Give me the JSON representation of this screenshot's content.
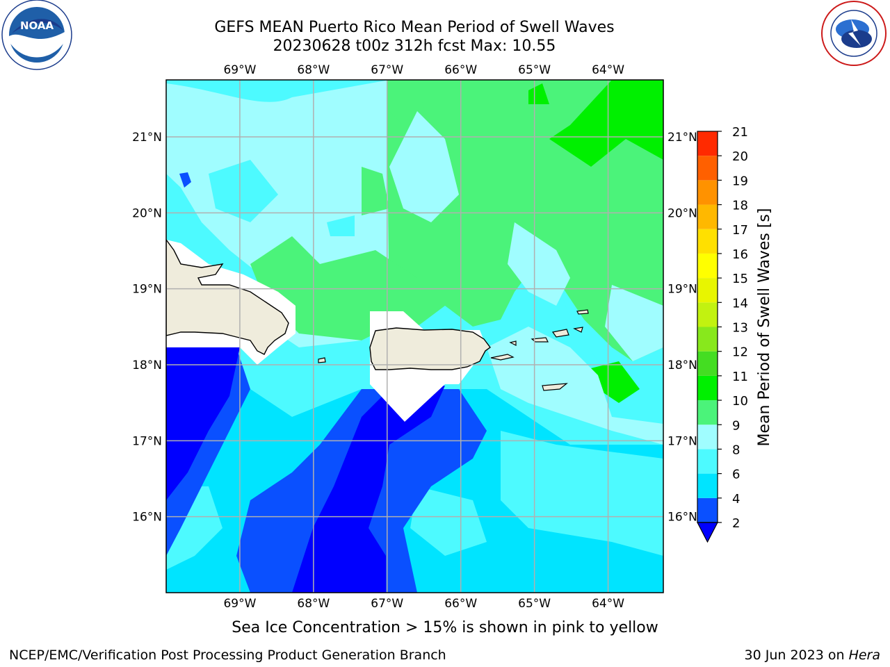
{
  "title": {
    "line1": "GEFS MEAN Puerto Rico Mean Period of Swell Waves",
    "line2": "20230628 t00z 312h fcst   Max: 10.55"
  },
  "map": {
    "lon_labels": [
      "69°W",
      "68°W",
      "67°W",
      "66°W",
      "65°W",
      "64°W"
    ],
    "lat_labels": [
      "21°N",
      "20°N",
      "19°N",
      "18°N",
      "17°N",
      "16°N"
    ],
    "lon_values": [
      -69,
      -68,
      -67,
      -66,
      -65,
      -64
    ],
    "lat_values": [
      21,
      20,
      19,
      18,
      17,
      16
    ],
    "extent": {
      "lon_min": -70,
      "lon_max": -63.25,
      "lat_min": 15,
      "lat_max": 21.75
    }
  },
  "colorbar": {
    "title": "Mean Period of Swell Waves [s]",
    "ticks": [
      "2",
      "4",
      "6",
      "8",
      "9",
      "10",
      "11",
      "12",
      "13",
      "14",
      "15",
      "16",
      "17",
      "18",
      "19",
      "20",
      "21"
    ],
    "colors": [
      "#0a50ff",
      "#00e4ff",
      "#4dfaff",
      "#a0fdff",
      "#4bf37a",
      "#00f000",
      "#44dd22",
      "#88e81c",
      "#c2f210",
      "#e8f500",
      "#ffff00",
      "#ffe000",
      "#ffb800",
      "#ff9200",
      "#ff6000",
      "#ff2a00"
    ],
    "under_color": "#0000ff"
  },
  "colors": {
    "land": "#efecdc",
    "ice_free_mask": "#ffffff",
    "grid": "#b0b0b0"
  },
  "footer": {
    "note": "Sea Ice Concentration > 15% is shown in pink to yellow",
    "credit": "NCEP/EMC/Verification Post Processing Product Generation Branch",
    "date": "30 Jun 2023 on",
    "host": "Hera"
  },
  "logos": {
    "left": "noaa-logo",
    "right": "nws-logo"
  }
}
